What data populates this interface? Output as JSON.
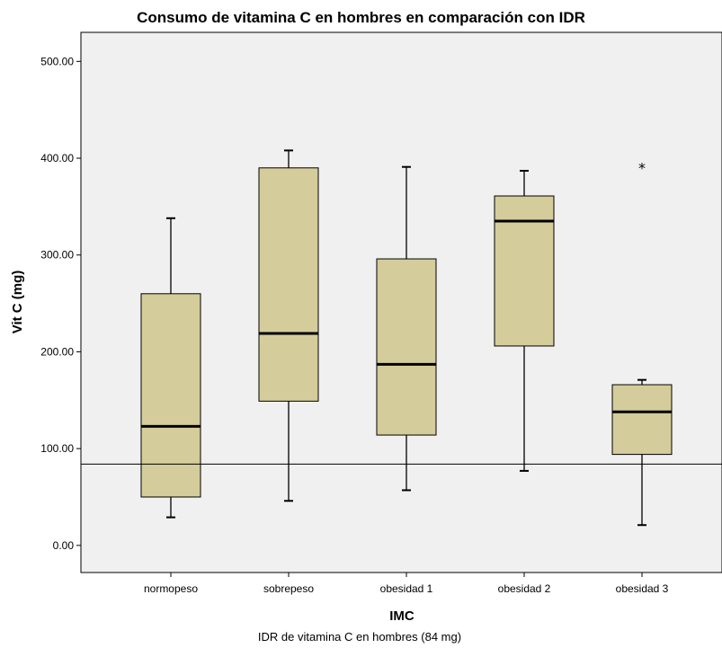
{
  "chart_data": {
    "type": "box",
    "title": "Consumo de vitamina C en hombres en comparación con IDR",
    "xlabel": "IMC",
    "ylabel": "Vit C (mg)",
    "footnote": "IDR de vitamina C en hombres (84 mg)",
    "ylim": [
      -28,
      530
    ],
    "yticks": [
      "0.00",
      "100.00",
      "200.00",
      "300.00",
      "400.00",
      "500.00"
    ],
    "ytick_values": [
      0,
      100,
      200,
      300,
      400,
      500
    ],
    "categories": [
      "normopeso",
      "sobrepeso",
      "obesidad 1",
      "obesidad 2",
      "obesidad 3"
    ],
    "boxes": [
      {
        "min": 29,
        "q1": 50,
        "median": 123,
        "q3": 260,
        "max": 338,
        "outliers": []
      },
      {
        "min": 46,
        "q1": 149,
        "median": 219,
        "q3": 390,
        "max": 408,
        "outliers": []
      },
      {
        "min": 57,
        "q1": 114,
        "median": 187,
        "q3": 296,
        "max": 391,
        "outliers": []
      },
      {
        "min": 77,
        "q1": 206,
        "median": 335,
        "q3": 361,
        "max": 387,
        "outliers": []
      },
      {
        "min": 21,
        "q1": 94,
        "median": 138,
        "q3": 166,
        "max": 171,
        "outliers": [
          392
        ]
      }
    ],
    "reference_line": 84,
    "colors": {
      "box_fill": "#d4cc9a",
      "plot_bg": "#f0f0f0",
      "stroke": "#000000"
    }
  }
}
